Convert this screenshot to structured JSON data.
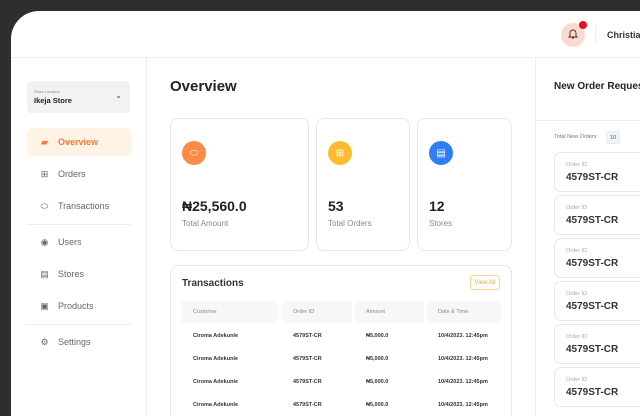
{
  "header": {
    "user_name": "Christian",
    "notification_icon": "bell-icon"
  },
  "sidebar": {
    "store_label": "Store Location",
    "store_value": "Ikeja Store",
    "items": [
      {
        "label": "Overview",
        "icon": "shopping-bag-icon",
        "active": true
      },
      {
        "label": "Orders",
        "icon": "orders-icon"
      },
      {
        "label": "Transactions",
        "icon": "coin-icon"
      },
      {
        "label": "Users",
        "icon": "user-icon"
      },
      {
        "label": "Stores",
        "icon": "store-icon"
      },
      {
        "label": "Products",
        "icon": "bag-icon"
      },
      {
        "label": "Settings",
        "icon": "gear-icon"
      }
    ]
  },
  "main": {
    "title": "Overview",
    "stats": [
      {
        "value": "₦25,560.0",
        "label": "Total Amount",
        "color": "#f98b47"
      },
      {
        "value": "53",
        "label": "Total Orders",
        "color": "#fbbd2f"
      },
      {
        "value": "12",
        "label": "Stores",
        "color": "#2f7ff0"
      }
    ],
    "transactions": {
      "title": "Transactions",
      "view_all": "View All",
      "columns": [
        "Customer",
        "Order ID",
        "Amount",
        "Date & Time"
      ],
      "rows": [
        [
          "Ciroma Adekunle",
          "4579ST-CR",
          "₦5,000.0",
          "10/4/2023. 12:45pm"
        ],
        [
          "Ciroma Adekunle",
          "4579ST-CR",
          "₦5,000.0",
          "10/4/2023. 12:45pm"
        ],
        [
          "Ciroma Adekunle",
          "4579ST-CR",
          "₦5,000.0",
          "10/4/2023. 12:45pm"
        ],
        [
          "Ciroma Adekunle",
          "4579ST-CR",
          "₦5,000.0",
          "10/4/2023. 12:45pm"
        ]
      ]
    }
  },
  "right": {
    "title": "New Order Requests",
    "total_label": "Total New Orders",
    "total_count": "10",
    "orders": [
      {
        "label": "Order ID",
        "id": "4579ST-CR"
      },
      {
        "label": "Order ID",
        "id": "4579ST-CR"
      },
      {
        "label": "Order ID",
        "id": "4579ST-CR"
      },
      {
        "label": "Order ID",
        "id": "4579ST-CR"
      },
      {
        "label": "Order ID",
        "id": "4579ST-CR"
      },
      {
        "label": "Order ID",
        "id": "4579ST-CR"
      }
    ]
  }
}
